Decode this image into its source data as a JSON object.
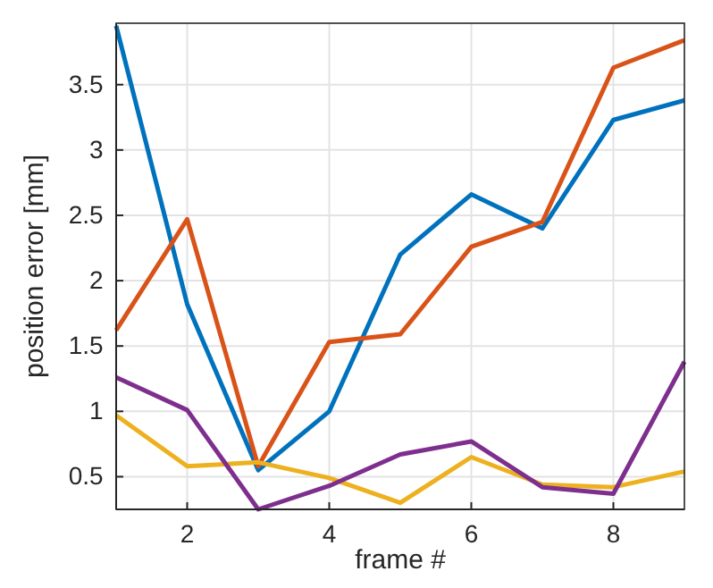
{
  "chart_data": {
    "type": "line",
    "xlabel": "frame #",
    "ylabel": "position error [mm]",
    "x": [
      1,
      2,
      3,
      4,
      5,
      6,
      7,
      8,
      9
    ],
    "series": [
      {
        "color": "#0072bd",
        "values": [
          3.95,
          1.82,
          0.55,
          1.0,
          2.2,
          2.66,
          2.4,
          3.23,
          3.38
        ]
      },
      {
        "color": "#d95319",
        "values": [
          1.62,
          2.47,
          0.58,
          1.53,
          1.59,
          2.26,
          2.45,
          3.63,
          3.84
        ]
      },
      {
        "color": "#edb120",
        "values": [
          0.97,
          0.58,
          0.61,
          0.49,
          0.3,
          0.65,
          0.44,
          0.42,
          0.54
        ]
      },
      {
        "color": "#7e2f8e",
        "values": [
          1.26,
          1.01,
          0.25,
          0.43,
          0.67,
          0.77,
          0.42,
          0.37,
          1.38
        ]
      }
    ],
    "xlim": [
      1,
      9
    ],
    "xticks": [
      2,
      4,
      6,
      8
    ],
    "ylim": [
      0.25,
      3.97
    ],
    "yticks": [
      0.5,
      1,
      1.5,
      2,
      2.5,
      3,
      3.5
    ],
    "grid": true,
    "marker": "none",
    "line_style": "solid"
  }
}
